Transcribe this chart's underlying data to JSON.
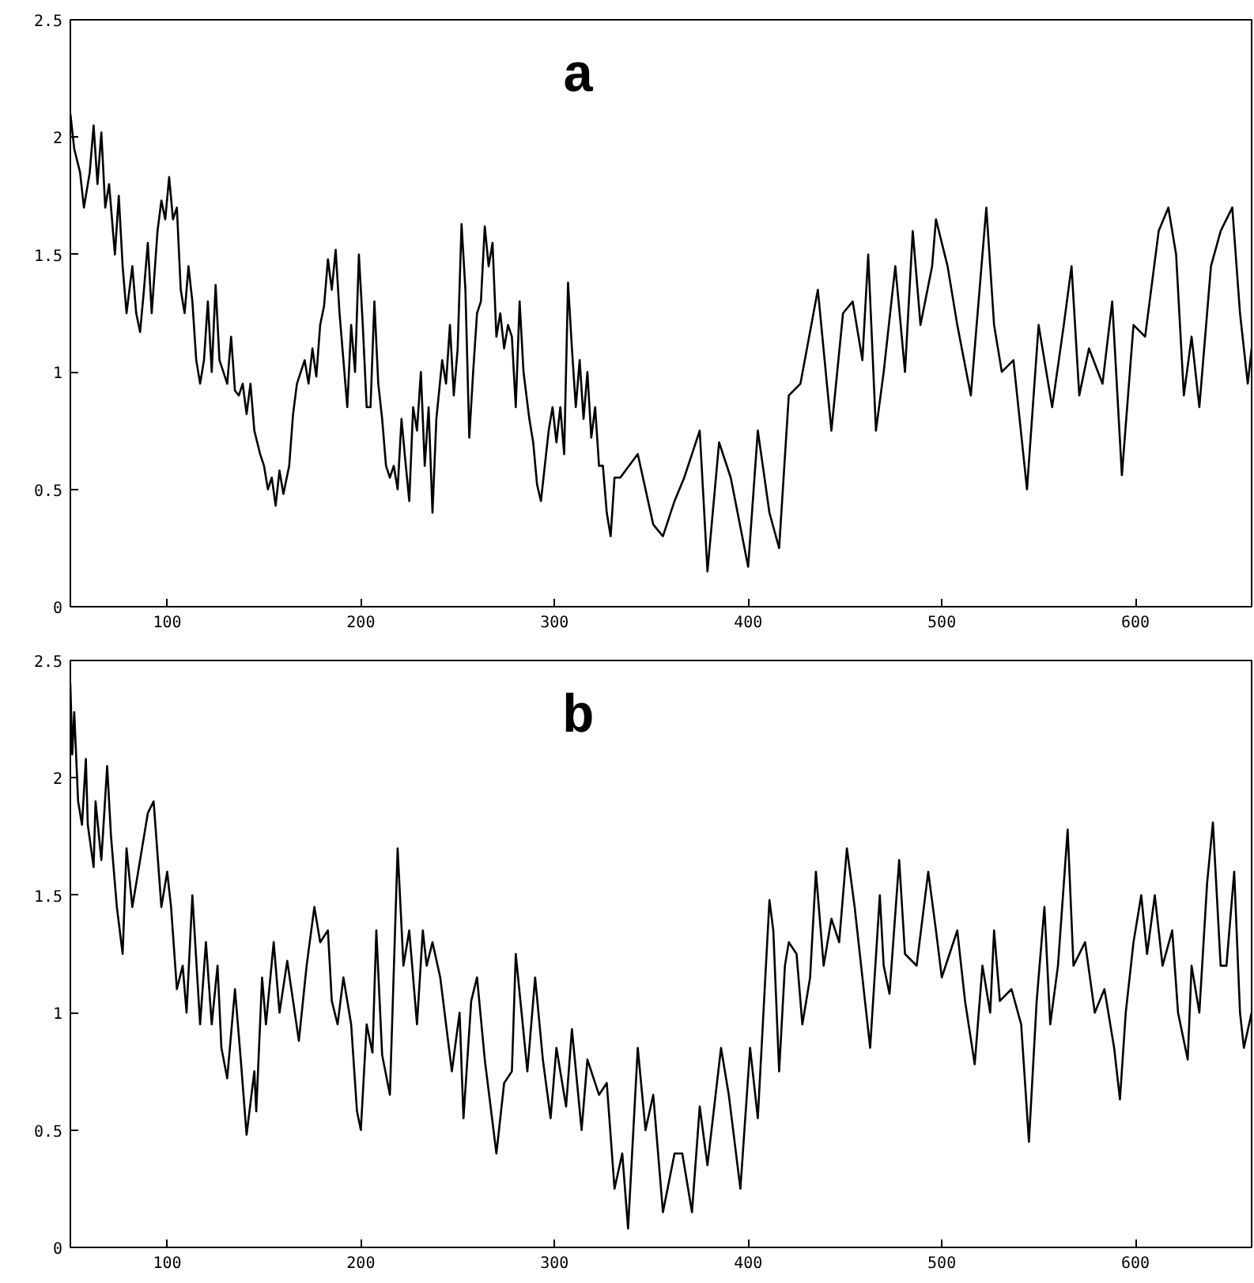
{
  "chart_data": [
    {
      "type": "line",
      "annotations": [
        "a"
      ],
      "xlim": [
        50,
        660
      ],
      "ylim": [
        0,
        2.5
      ],
      "xticks": [
        100,
        200,
        300,
        400,
        500,
        600
      ],
      "yticks": [
        0,
        0.5,
        1,
        1.5,
        2,
        2.5
      ],
      "grid": false,
      "marker": "none",
      "line_style": "solid",
      "series": [
        {
          "color": "#000000",
          "x": [
            50,
            52,
            55,
            57,
            60,
            62,
            64,
            66,
            68,
            70,
            73,
            75,
            77,
            79,
            82,
            84,
            86,
            88,
            90,
            92,
            95,
            97,
            99,
            101,
            103,
            105,
            107,
            109,
            111,
            113,
            115,
            117,
            119,
            121,
            123,
            125,
            127,
            129,
            131,
            133,
            135,
            137,
            139,
            141,
            143,
            145,
            148,
            150,
            152,
            154,
            156,
            158,
            160,
            163,
            165,
            167,
            169,
            171,
            173,
            175,
            177,
            179,
            181,
            183,
            185,
            187,
            189,
            191,
            193,
            195,
            197,
            199,
            201,
            203,
            205,
            207,
            209,
            211,
            213,
            215,
            217,
            219,
            221,
            223,
            225,
            227,
            229,
            231,
            233,
            235,
            237,
            239,
            242,
            244,
            246,
            248,
            250,
            252,
            254,
            256,
            258,
            260,
            262,
            264,
            266,
            268,
            270,
            272,
            274,
            276,
            278,
            280,
            282,
            284,
            287,
            289,
            291,
            293,
            295,
            297,
            299,
            301,
            303,
            305,
            307,
            309,
            311,
            313,
            315,
            317,
            319,
            321,
            323,
            325,
            327,
            329,
            331,
            334,
            343,
            351,
            356,
            362,
            367,
            375,
            379,
            385,
            391,
            400,
            405,
            411,
            416,
            421,
            427,
            436,
            443,
            449,
            454,
            459,
            462,
            466,
            470,
            476,
            481,
            485,
            489,
            495,
            497,
            503,
            508,
            515,
            519,
            523,
            527,
            531,
            537,
            544,
            550,
            557,
            563,
            567,
            571,
            576,
            583,
            588,
            593,
            599,
            605,
            612,
            617,
            621,
            625,
            629,
            633,
            639,
            644,
            650,
            654,
            658,
            660
          ],
          "values": [
            2.1,
            1.95,
            1.85,
            1.7,
            1.85,
            2.05,
            1.8,
            2.02,
            1.7,
            1.8,
            1.5,
            1.75,
            1.45,
            1.25,
            1.45,
            1.25,
            1.17,
            1.35,
            1.55,
            1.25,
            1.6,
            1.73,
            1.65,
            1.83,
            1.65,
            1.7,
            1.35,
            1.25,
            1.45,
            1.3,
            1.05,
            0.95,
            1.05,
            1.3,
            1.0,
            1.37,
            1.05,
            1.0,
            0.95,
            1.15,
            0.92,
            0.9,
            0.95,
            0.82,
            0.95,
            0.75,
            0.65,
            0.6,
            0.5,
            0.55,
            0.43,
            0.58,
            0.48,
            0.6,
            0.82,
            0.95,
            1.0,
            1.05,
            0.95,
            1.1,
            0.98,
            1.2,
            1.28,
            1.48,
            1.35,
            1.52,
            1.25,
            1.05,
            0.85,
            1.2,
            1.0,
            1.5,
            1.2,
            0.85,
            0.85,
            1.3,
            0.95,
            0.8,
            0.6,
            0.55,
            0.6,
            0.5,
            0.8,
            0.62,
            0.45,
            0.85,
            0.75,
            1.0,
            0.6,
            0.85,
            0.4,
            0.8,
            1.05,
            0.95,
            1.2,
            0.9,
            1.1,
            1.63,
            1.35,
            0.72,
            1.0,
            1.25,
            1.3,
            1.62,
            1.45,
            1.55,
            1.15,
            1.25,
            1.1,
            1.2,
            1.15,
            0.85,
            1.3,
            1.0,
            0.8,
            0.7,
            0.52,
            0.45,
            0.6,
            0.75,
            0.85,
            0.7,
            0.85,
            0.65,
            1.38,
            1.1,
            0.85,
            1.05,
            0.8,
            1.0,
            0.72,
            0.85,
            0.6,
            0.6,
            0.4,
            0.3,
            0.55,
            0.55,
            0.65,
            0.35,
            0.3,
            0.45,
            0.55,
            0.75,
            0.15,
            0.7,
            0.55,
            0.17,
            0.75,
            0.4,
            0.25,
            0.9,
            0.95,
            1.35,
            0.75,
            1.25,
            1.3,
            1.05,
            1.5,
            0.75,
            1.0,
            1.45,
            1.0,
            1.6,
            1.2,
            1.45,
            1.65,
            1.45,
            1.2,
            0.9,
            1.3,
            1.7,
            1.2,
            1.0,
            1.05,
            0.5,
            1.2,
            0.85,
            1.2,
            1.45,
            0.9,
            1.1,
            0.95,
            1.3,
            0.56,
            1.2,
            1.15,
            1.6,
            1.7,
            1.5,
            0.9,
            1.15,
            0.85,
            1.45,
            1.6,
            1.7,
            1.25,
            0.95,
            1.1
          ]
        }
      ]
    },
    {
      "type": "line",
      "annotations": [
        "b"
      ],
      "xlim": [
        50,
        660
      ],
      "ylim": [
        0,
        2.5
      ],
      "xticks": [
        100,
        200,
        300,
        400,
        500,
        600
      ],
      "yticks": [
        0,
        0.5,
        1,
        1.5,
        2,
        2.5
      ],
      "grid": false,
      "marker": "none",
      "line_style": "solid",
      "series": [
        {
          "color": "#000000",
          "x": [
            50,
            51,
            52,
            54,
            56,
            58,
            59,
            62,
            63,
            66,
            69,
            71,
            74,
            77,
            79,
            82,
            85,
            88,
            90,
            93,
            97,
            100,
            102,
            105,
            108,
            110,
            113,
            117,
            120,
            123,
            126,
            128,
            131,
            135,
            138,
            141,
            145,
            146,
            149,
            151,
            155,
            158,
            162,
            168,
            172,
            176,
            179,
            183,
            185,
            188,
            191,
            195,
            198,
            200,
            203,
            206,
            208,
            211,
            215,
            219,
            222,
            225,
            229,
            232,
            234,
            237,
            241,
            247,
            251,
            253,
            257,
            260,
            264,
            270,
            274,
            278,
            280,
            283,
            286,
            290,
            294,
            298,
            301,
            306,
            309,
            314,
            317,
            323,
            327,
            331,
            335,
            338,
            343,
            347,
            351,
            356,
            362,
            366,
            371,
            375,
            379,
            386,
            390,
            396,
            401,
            405,
            411,
            413,
            416,
            419,
            421,
            425,
            428,
            432,
            435,
            439,
            443,
            447,
            451,
            455,
            459,
            463,
            468,
            470,
            473,
            478,
            481,
            487,
            493,
            497,
            500,
            504,
            508,
            512,
            517,
            521,
            525,
            527,
            530,
            536,
            541,
            545,
            549,
            553,
            556,
            560,
            565,
            568,
            574,
            579,
            584,
            589,
            592,
            595,
            599,
            603,
            606,
            610,
            614,
            619,
            622,
            627,
            629,
            633,
            637,
            640,
            644,
            647,
            651,
            654,
            656,
            660
          ],
          "values": [
            2.4,
            2.1,
            2.28,
            1.9,
            1.8,
            2.08,
            1.8,
            1.62,
            1.9,
            1.65,
            2.05,
            1.75,
            1.45,
            1.25,
            1.7,
            1.45,
            1.6,
            1.75,
            1.85,
            1.9,
            1.45,
            1.6,
            1.45,
            1.1,
            1.2,
            1.0,
            1.5,
            0.95,
            1.3,
            0.95,
            1.2,
            0.85,
            0.72,
            1.1,
            0.8,
            0.48,
            0.75,
            0.58,
            1.15,
            0.95,
            1.3,
            1.0,
            1.22,
            0.88,
            1.2,
            1.45,
            1.3,
            1.35,
            1.05,
            0.95,
            1.15,
            0.95,
            0.58,
            0.5,
            0.95,
            0.83,
            1.35,
            0.82,
            0.65,
            1.7,
            1.2,
            1.35,
            0.95,
            1.35,
            1.2,
            1.3,
            1.15,
            0.75,
            1.0,
            0.55,
            1.05,
            1.15,
            0.8,
            0.4,
            0.7,
            0.75,
            1.25,
            1.0,
            0.75,
            1.15,
            0.8,
            0.55,
            0.85,
            0.6,
            0.93,
            0.5,
            0.8,
            0.65,
            0.7,
            0.25,
            0.4,
            0.08,
            0.85,
            0.5,
            0.65,
            0.15,
            0.4,
            0.4,
            0.15,
            0.6,
            0.35,
            0.85,
            0.65,
            0.25,
            0.85,
            0.55,
            1.48,
            1.35,
            0.75,
            1.2,
            1.3,
            1.25,
            0.95,
            1.15,
            1.6,
            1.2,
            1.4,
            1.3,
            1.7,
            1.45,
            1.15,
            0.85,
            1.5,
            1.2,
            1.08,
            1.65,
            1.25,
            1.2,
            1.6,
            1.35,
            1.15,
            1.25,
            1.35,
            1.05,
            0.78,
            1.2,
            1.0,
            1.35,
            1.05,
            1.1,
            0.95,
            0.45,
            1.05,
            1.45,
            0.95,
            1.2,
            1.78,
            1.2,
            1.3,
            1.0,
            1.1,
            0.85,
            0.63,
            1.0,
            1.3,
            1.5,
            1.25,
            1.5,
            1.2,
            1.35,
            1.0,
            0.8,
            1.2,
            1.0,
            1.55,
            1.81,
            1.2,
            1.2,
            1.6,
            1.0,
            0.85,
            1.0
          ]
        }
      ]
    }
  ]
}
